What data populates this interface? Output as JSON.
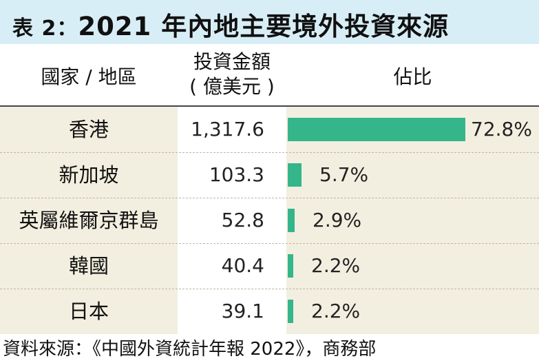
{
  "title": {
    "prefix": "表 2：",
    "main": "2021 年內地主要境外投資來源"
  },
  "columns": {
    "country": "國家 / 地區",
    "amount_line1": "投資金額",
    "amount_line2": "( 億美元 )",
    "share": "佔比"
  },
  "rows": [
    {
      "name": "香港",
      "amount": "1,317.6",
      "share_label": "72.8%"
    },
    {
      "name": "新加坡",
      "amount": "103.3",
      "share_label": "5.7%"
    },
    {
      "name": "英屬維爾京群島",
      "amount": "52.8",
      "share_label": "2.9%"
    },
    {
      "name": "韓國",
      "amount": "40.4",
      "share_label": "2.2%"
    },
    {
      "name": "日本",
      "amount": "39.1",
      "share_label": "2.2%"
    }
  ],
  "source": "資料來源：《中國外資統計年報 2022》，商務部",
  "colors": {
    "bar": "#35b58a",
    "title_background": "#d8eef7",
    "body_background": "#f3efe0"
  },
  "chart_data": {
    "type": "bar",
    "categories": [
      "香港",
      "新加坡",
      "英屬維爾京群島",
      "韓國",
      "日本"
    ],
    "series": [
      {
        "values": [
          72.8,
          5.7,
          2.9,
          2.2,
          2.2
        ]
      }
    ],
    "amounts": [
      1317.6,
      103.3,
      52.8,
      40.4,
      39.1
    ],
    "unit": "%",
    "orientation": "horizontal",
    "title": "2021 年內地主要境外投資來源"
  }
}
